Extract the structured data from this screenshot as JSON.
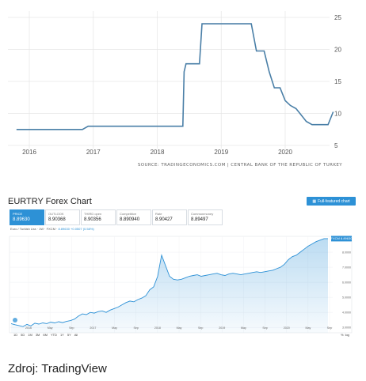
{
  "top_chart": {
    "chart_data": {
      "type": "line",
      "x_ticks": [
        "2016",
        "2017",
        "2018",
        "2019",
        "2020"
      ],
      "y_ticks": [
        5,
        10,
        15,
        20,
        25
      ],
      "ylim": [
        5,
        25
      ],
      "grid": true,
      "color": "#4a7fa7",
      "points": [
        {
          "x": 2015.8,
          "y": 7.5
        },
        {
          "x": 2016.83,
          "y": 7.5
        },
        {
          "x": 2016.92,
          "y": 8.0
        },
        {
          "x": 2018.4,
          "y": 8.0
        },
        {
          "x": 2018.42,
          "y": 16.5
        },
        {
          "x": 2018.45,
          "y": 17.75
        },
        {
          "x": 2018.66,
          "y": 17.75
        },
        {
          "x": 2018.7,
          "y": 24.0
        },
        {
          "x": 2019.47,
          "y": 24.0
        },
        {
          "x": 2019.55,
          "y": 19.75
        },
        {
          "x": 2019.67,
          "y": 19.75
        },
        {
          "x": 2019.75,
          "y": 16.5
        },
        {
          "x": 2019.83,
          "y": 14.0
        },
        {
          "x": 2019.92,
          "y": 14.0
        },
        {
          "x": 2020.0,
          "y": 12.0
        },
        {
          "x": 2020.08,
          "y": 11.25
        },
        {
          "x": 2020.17,
          "y": 10.75
        },
        {
          "x": 2020.25,
          "y": 9.75
        },
        {
          "x": 2020.33,
          "y": 8.75
        },
        {
          "x": 2020.42,
          "y": 8.25
        },
        {
          "x": 2020.5,
          "y": 8.25
        },
        {
          "x": 2020.67,
          "y": 8.25
        },
        {
          "x": 2020.75,
          "y": 10.25
        }
      ]
    },
    "source": "SOURCE: TRADINGECONOMICS.COM  |  CENTRAL BANK OF THE REPUBLIC OF TURKEY"
  },
  "forex": {
    "title": "EURTRY Forex Chart",
    "full_button": "Full-featured chart",
    "stats": [
      {
        "label": "PRICE",
        "value": "8.89630"
      },
      {
        "label": "OUTLOOK",
        "value": "8.90368"
      },
      {
        "label": "THIRD open",
        "value": "8.90356"
      },
      {
        "label": "Competitive",
        "value": "8.890940"
      },
      {
        "label": "Rate",
        "value": "8.90427"
      },
      {
        "label": "Commonmoney",
        "value": "8.89497"
      }
    ],
    "legend": {
      "prefix": "Euro / Turkish Lira · 1W · FXCM ·",
      "value": "8.89630 +0.0507 (0.58%)"
    },
    "price_tag": "FXCM 8.89630",
    "chart_data": {
      "type": "area",
      "color": "#2d91d6",
      "x_ticks": [
        "2016",
        "May",
        "Sep",
        "2017",
        "May",
        "Sep",
        "2018",
        "May",
        "Sep",
        "2019",
        "May",
        "Sep",
        "2020",
        "May",
        "Sep"
      ],
      "y_ticks": [
        "8.0000",
        "7.0000",
        "6.0000",
        "5.0000",
        "4.0000",
        "3.0000"
      ],
      "ylim": [
        2.8,
        9.0
      ],
      "values": [
        3.25,
        3.18,
        3.12,
        3.05,
        3.2,
        3.1,
        3.28,
        3.22,
        3.3,
        3.25,
        3.35,
        3.3,
        3.38,
        3.32,
        3.4,
        3.45,
        3.55,
        3.75,
        3.9,
        3.85,
        4.0,
        3.95,
        4.05,
        4.1,
        4.0,
        4.15,
        4.25,
        4.35,
        4.5,
        4.65,
        4.75,
        4.7,
        4.85,
        4.95,
        5.1,
        5.5,
        5.7,
        6.4,
        7.8,
        7.1,
        6.4,
        6.2,
        6.15,
        6.2,
        6.3,
        6.4,
        6.45,
        6.5,
        6.4,
        6.45,
        6.5,
        6.55,
        6.6,
        6.5,
        6.45,
        6.55,
        6.6,
        6.55,
        6.5,
        6.55,
        6.6,
        6.65,
        6.7,
        6.65,
        6.7,
        6.75,
        6.8,
        6.9,
        7.0,
        7.2,
        7.5,
        7.7,
        7.8,
        8.0,
        8.2,
        8.4,
        8.55,
        8.7,
        8.8,
        8.9,
        8.9
      ]
    },
    "ranges": [
      "1D",
      "5D",
      "1M",
      "3M",
      "6M",
      "YTD",
      "1Y",
      "5Y",
      "All"
    ],
    "settings": [
      "%",
      "log"
    ]
  },
  "caption": "Zdroj: TradingView"
}
